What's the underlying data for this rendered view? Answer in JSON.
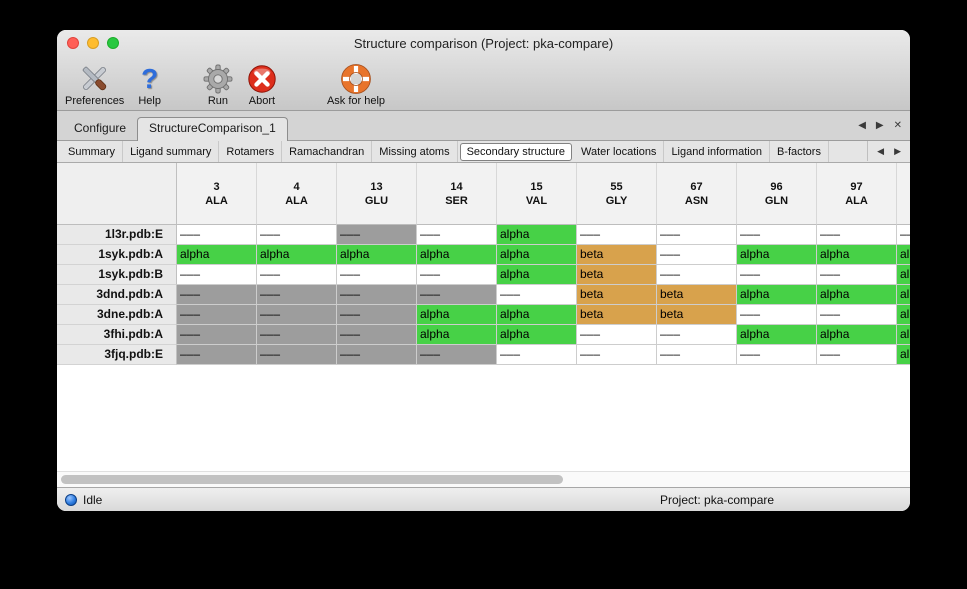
{
  "window": {
    "title": "Structure comparison (Project: pka-compare)"
  },
  "toolbar": {
    "items": [
      {
        "label": "Preferences",
        "icon": "tools-icon"
      },
      {
        "label": "Help",
        "icon": "question-mark-icon"
      },
      {
        "label": "Run",
        "icon": "gear-icon"
      },
      {
        "label": "Abort",
        "icon": "abort-icon"
      },
      {
        "label": "Ask for help",
        "icon": "life-ring-icon"
      }
    ]
  },
  "tab_bar": {
    "tabs": [
      {
        "label": "Configure",
        "active": false
      },
      {
        "label": "StructureComparison_1",
        "active": true
      }
    ],
    "controls": {
      "prev": "◀",
      "next": "▶",
      "close": "✕"
    }
  },
  "subtab_bar": {
    "tabs": [
      {
        "label": "Summary",
        "selected": false
      },
      {
        "label": "Ligand summary",
        "selected": false
      },
      {
        "label": "Rotamers",
        "selected": false
      },
      {
        "label": "Ramachandran",
        "selected": false
      },
      {
        "label": "Missing atoms",
        "selected": false
      },
      {
        "label": "Secondary structure",
        "selected": true
      },
      {
        "label": "Water locations",
        "selected": false
      },
      {
        "label": "Ligand information",
        "selected": false
      },
      {
        "label": "B-factors",
        "selected": false
      }
    ],
    "controls": {
      "prev": "◀",
      "next": "▶"
    }
  },
  "table": {
    "columns": [
      {
        "number": "3",
        "residue": "ALA"
      },
      {
        "number": "4",
        "residue": "ALA"
      },
      {
        "number": "13",
        "residue": "GLU"
      },
      {
        "number": "14",
        "residue": "SER"
      },
      {
        "number": "15",
        "residue": "VAL"
      },
      {
        "number": "55",
        "residue": "GLY"
      },
      {
        "number": "67",
        "residue": "ASN"
      },
      {
        "number": "96",
        "residue": "GLN"
      },
      {
        "number": "97",
        "residue": "ALA"
      },
      {
        "number": "",
        "residue": ""
      }
    ],
    "cell_text": {
      "none": "–––",
      "gap": "–––",
      "alpha": "alpha",
      "beta": "beta"
    },
    "cell_colors": {
      "none": "#ffffff",
      "gap": "#9d9d9d",
      "alpha": "#47d147",
      "beta": "#d8a24c"
    },
    "rows": [
      {
        "header": "1l3r.pdb:E",
        "cells": [
          "none",
          "none",
          "gap",
          "none",
          "alpha",
          "none",
          "none",
          "none",
          "none",
          "none"
        ]
      },
      {
        "header": "1syk.pdb:A",
        "cells": [
          "alpha",
          "alpha",
          "alpha",
          "alpha",
          "alpha",
          "beta",
          "none",
          "alpha",
          "alpha",
          "alpha"
        ]
      },
      {
        "header": "1syk.pdb:B",
        "cells": [
          "none",
          "none",
          "none",
          "none",
          "alpha",
          "beta",
          "none",
          "none",
          "none",
          "alpha"
        ]
      },
      {
        "header": "3dnd.pdb:A",
        "cells": [
          "gap",
          "gap",
          "gap",
          "gap",
          "none",
          "beta",
          "beta",
          "alpha",
          "alpha",
          "alpha"
        ]
      },
      {
        "header": "3dne.pdb:A",
        "cells": [
          "gap",
          "gap",
          "gap",
          "alpha",
          "alpha",
          "beta",
          "beta",
          "none",
          "none",
          "alpha"
        ]
      },
      {
        "header": "3fhi.pdb:A",
        "cells": [
          "gap",
          "gap",
          "gap",
          "alpha",
          "alpha",
          "none",
          "none",
          "alpha",
          "alpha",
          "alpha"
        ]
      },
      {
        "header": "3fjq.pdb:E",
        "cells": [
          "gap",
          "gap",
          "gap",
          "gap",
          "none",
          "none",
          "none",
          "none",
          "none",
          "alpha"
        ]
      }
    ]
  },
  "statusbar": {
    "status": "Idle",
    "project": "Project: pka-compare"
  }
}
